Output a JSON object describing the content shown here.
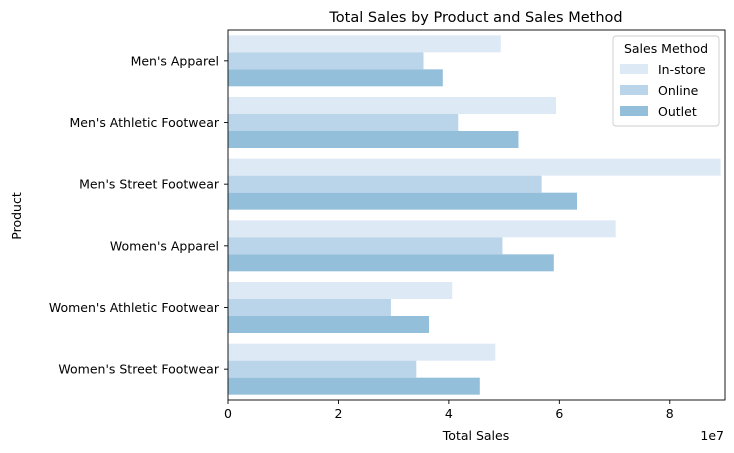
{
  "chart_data": {
    "type": "bar",
    "orientation": "horizontal",
    "title": "Total Sales by Product and Sales Method",
    "xlabel": "Total Sales",
    "ylabel": "Product",
    "x_scale_label": "1e7",
    "xlim": [
      0,
      90000000
    ],
    "x_ticks": [
      0,
      20000000,
      40000000,
      60000000,
      80000000
    ],
    "x_tick_labels": [
      "0",
      "2",
      "4",
      "6",
      "8"
    ],
    "grid": false,
    "legend_title": "Sales Method",
    "legend_position": "top-right",
    "categories": [
      "Men's Apparel",
      "Men's Athletic Footwear",
      "Men's Street Footwear",
      "Women's Apparel",
      "Women's Athletic Footwear",
      "Women's Street Footwear"
    ],
    "series": [
      {
        "name": "In-store",
        "color": "#dee9f6",
        "values": [
          49400000,
          59400000,
          89200000,
          70200000,
          40600000,
          48400000
        ]
      },
      {
        "name": "Online",
        "color": "#bad5ea",
        "values": [
          35400000,
          41700000,
          56800000,
          49700000,
          29500000,
          34100000
        ]
      },
      {
        "name": "Outlet",
        "color": "#94bfdb",
        "values": [
          38900000,
          52600000,
          63200000,
          59000000,
          36400000,
          45600000
        ]
      }
    ]
  }
}
